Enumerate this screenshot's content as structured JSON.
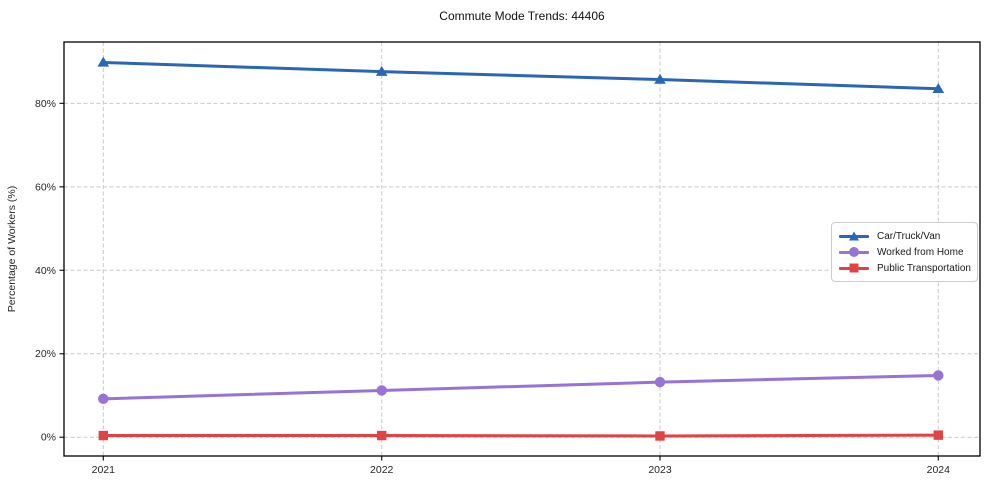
{
  "title": "Commute Mode Trends: 44406",
  "chart_data": {
    "type": "line",
    "title": "Commute Mode Trends: 44406",
    "xlabel": "",
    "ylabel": "Percentage of Workers (%)",
    "x": [
      2021,
      2022,
      2023,
      2024
    ],
    "xtick_labels": [
      "2021",
      "2022",
      "2023",
      "2024"
    ],
    "ytick_labels": [
      "0%",
      "20%",
      "40%",
      "60%",
      "80%"
    ],
    "ytick_values": [
      0,
      20,
      40,
      60,
      80
    ],
    "ylim": [
      -4.5,
      94.7
    ],
    "grid": true,
    "grid_style": "dashed",
    "legend_position": "center right",
    "series": [
      {
        "name": "Car/Truck/Van",
        "marker": "triangle",
        "color": "#2a65b8",
        "values": [
          89.8,
          87.6,
          85.7,
          83.5
        ]
      },
      {
        "name": "Worked from Home",
        "marker": "circle",
        "color": "#9673d4",
        "values": [
          9.2,
          11.2,
          13.2,
          14.8
        ]
      },
      {
        "name": "Public Transportation",
        "marker": "square",
        "color": "#e04343",
        "values": [
          0.4,
          0.4,
          0.3,
          0.5
        ]
      }
    ]
  }
}
